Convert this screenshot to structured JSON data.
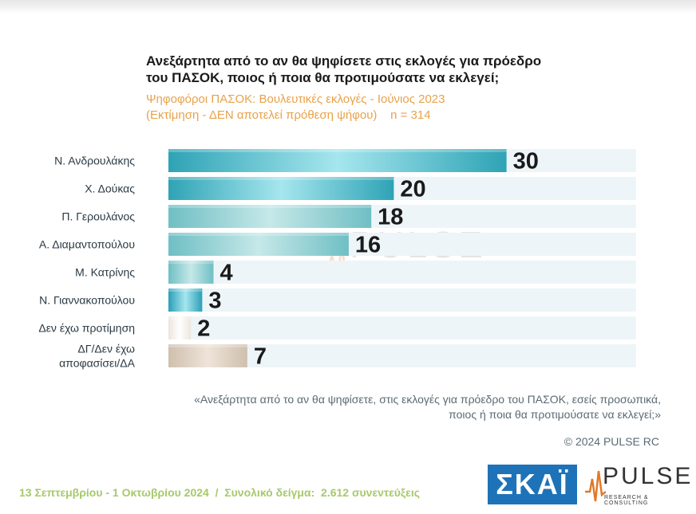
{
  "title_line1": "Ανεξάρτητα από το αν θα ψηφίσετε στις εκλογές για πρόεδρο",
  "title_line2": "του ΠΑΣΟΚ, ποιος ή ποια θα προτιμούσατε να εκλεγεί;",
  "subtitle_line1": "Ψηφοφόροι ΠΑΣΟΚ: Βουλευτικές εκλογές - Ιούνιος 2023",
  "subtitle_line2": "(Εκτίμηση - ΔΕΝ αποτελεί πρόθεση ψήφου)    n = 314",
  "chart_data": {
    "type": "bar",
    "orientation": "horizontal",
    "categories": [
      "Ν. Ανδρουλάκης",
      "Χ. Δούκας",
      "Π. Γερουλάνος",
      "Α. Διαμαντοπούλου",
      "Μ. Κατρίνης",
      "Ν. Γιαννακοπούλου",
      "Δεν έχω προτίμηση",
      "ΔΓ/Δεν έχω αποφασίσει/ΔΑ"
    ],
    "label_lines": [
      [
        "Ν. Ανδρουλάκης"
      ],
      [
        "Χ. Δούκας"
      ],
      [
        "Π. Γερουλάνος"
      ],
      [
        "Α. Διαμαντοπούλου"
      ],
      [
        "Μ. Κατρίνης"
      ],
      [
        "Ν. Γιαννακοπούλου"
      ],
      [
        "Δεν έχω προτίμηση"
      ],
      [
        "ΔΓ/Δεν έχω",
        "αποφασίσει/ΔΑ"
      ]
    ],
    "values": [
      30,
      20,
      18,
      16,
      4,
      3,
      2,
      7
    ],
    "value_labels": [
      "30",
      "20",
      "18",
      "16",
      "4",
      "3",
      "2",
      "7"
    ],
    "xlim": [
      0,
      41.5
    ],
    "colors": [
      "#2ea3b5",
      "#2ea3b5",
      "#6fbfc4",
      "#6fbfc4",
      "#6fbfc4",
      "#2a9fb8",
      "#ece5dc",
      "#cfbfae"
    ],
    "highlight_colors": [
      "#a6e6ee",
      "#a6e6ee",
      "#c6e8e8",
      "#c6e8e8",
      "#c6e8e8",
      "#a6e6ee",
      "#ffffff",
      "#eee4d8"
    ],
    "track_color": "#eef5f8",
    "grid": false,
    "legend": "none"
  },
  "watermark": {
    "word": "PULSE",
    "sub": "RESEARCH & CONSULTING"
  },
  "quote_line1": "«Ανεξάρτητα από το αν θα ψηφίσετε, στις εκλογές για πρόεδρο του ΠΑΣΟΚ, εσείς προσωπικά,",
  "quote_line2": "ποιος ή ποια θα προτιμούσατε να εκλεγεί;»",
  "copyright": "© 2024 PULSE RC",
  "footer": "13 Σεπτεμβρίου - 1 Οκτωβρίου 2024  /  Συνολικό δείγμα:  2.612 συνεντεύξεις",
  "logos": {
    "skai": "ΣΚΑΪ",
    "pulse_word": "PULSE",
    "pulse_sub": "RESEARCH & CONSULTING"
  }
}
